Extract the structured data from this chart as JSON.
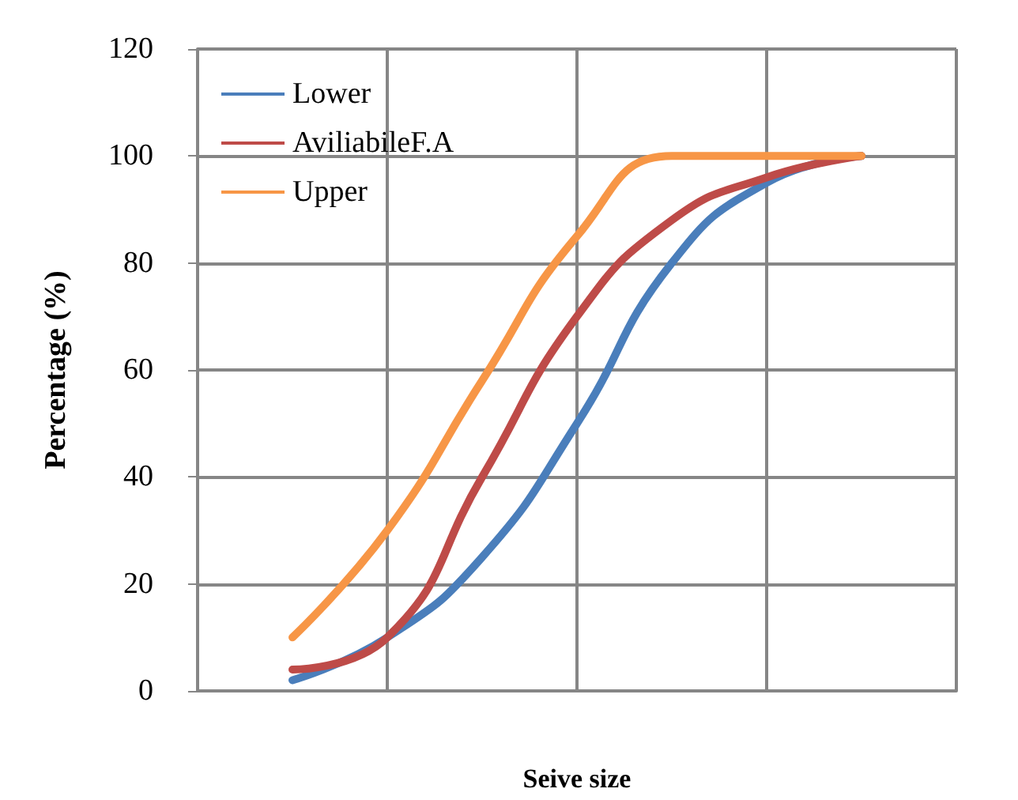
{
  "chart_data": {
    "type": "line",
    "xlabel": "Seive size",
    "ylabel": "Percentage (%)",
    "categories": [
      null,
      null,
      null,
      null,
      null,
      null,
      null,
      null,
      null
    ],
    "series": [
      {
        "name": "Lower",
        "color": "#4a7ebb",
        "values": [
          null,
          2,
          10,
          25,
          50,
          80,
          95,
          100,
          null
        ]
      },
      {
        "name": "AviliabileF.A",
        "color": "#be4b48",
        "values": [
          null,
          4,
          10,
          40,
          70,
          88,
          96,
          100,
          null
        ]
      },
      {
        "name": "Upper",
        "color": "#f79646",
        "values": [
          null,
          10,
          30,
          58,
          85,
          100,
          100,
          100,
          null
        ]
      }
    ],
    "ylim": [
      0,
      120
    ],
    "yticks": [
      0,
      20,
      40,
      60,
      80,
      100,
      120
    ],
    "grid": true,
    "legend": "top left",
    "tick_labels": "y",
    "marker": "none",
    "line_style": "solid"
  }
}
